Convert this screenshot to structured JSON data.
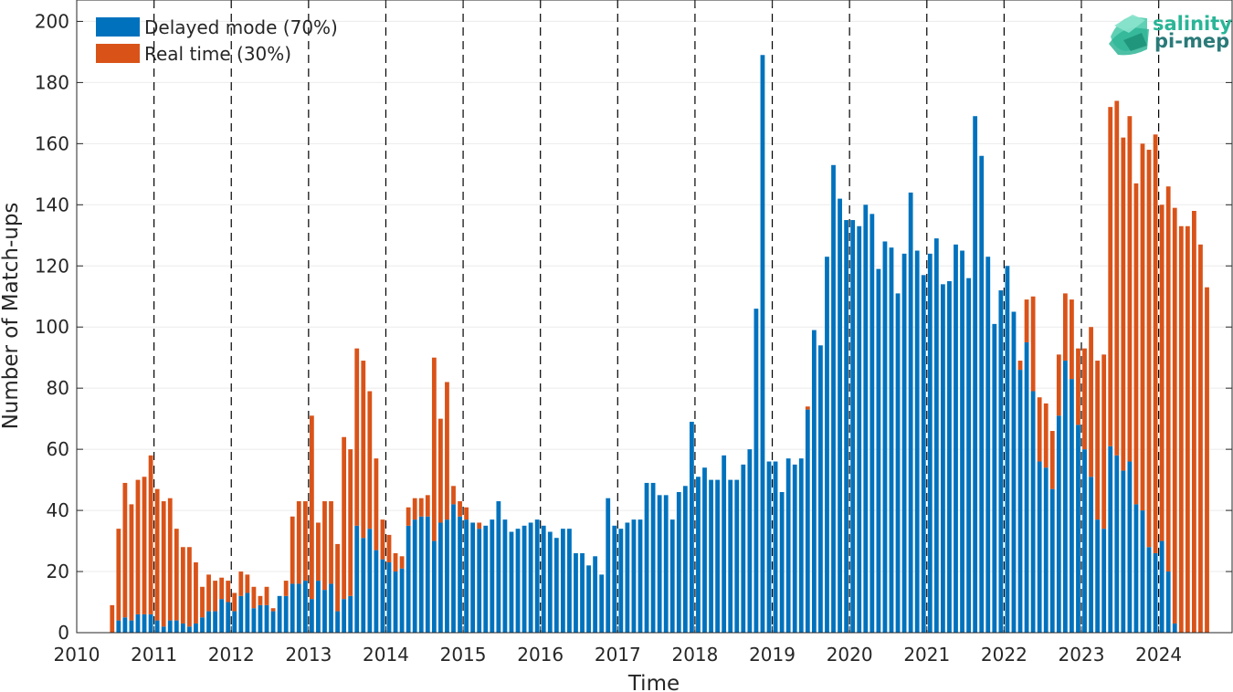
{
  "chart_data": {
    "type": "bar",
    "stacked": true,
    "xlabel": "Time",
    "ylabel": "Number of Match-ups",
    "ylim": [
      0,
      207
    ],
    "xlim": [
      2010.0,
      2024.95
    ],
    "yticks": [
      0,
      20,
      40,
      60,
      80,
      100,
      120,
      140,
      160,
      180,
      200
    ],
    "xticks": [
      "2010",
      "2011",
      "2012",
      "2013",
      "2014",
      "2015",
      "2016",
      "2017",
      "2018",
      "2019",
      "2020",
      "2021",
      "2022",
      "2023",
      "2024"
    ],
    "year_lines": [
      2011,
      2012,
      2013,
      2014,
      2015,
      2016,
      2017,
      2018,
      2019,
      2020,
      2021,
      2022,
      2023,
      2024
    ],
    "grid": true,
    "legend_position": "top-left",
    "x_start": "2010-06",
    "x_step": "1 month",
    "colors": {
      "delayed": "#0072BD",
      "realtime": "#D95319"
    },
    "series": [
      {
        "name": "Delayed mode (70%)",
        "color": "#0072BD",
        "values": [
          0,
          4,
          5,
          4,
          6,
          6,
          6,
          4,
          2,
          4,
          4,
          3,
          2,
          3,
          5,
          7,
          7,
          11,
          10,
          7,
          12,
          13,
          8,
          9,
          9,
          7,
          12,
          12,
          16,
          16,
          17,
          11,
          17,
          14,
          16,
          7,
          11,
          12,
          35,
          31,
          34,
          27,
          24,
          23,
          20,
          21,
          35,
          37,
          38,
          38,
          30,
          36,
          37,
          42,
          38,
          37,
          36,
          34,
          35,
          37,
          43,
          37,
          33,
          34,
          35,
          36,
          37,
          35,
          33,
          31,
          34,
          34,
          26,
          26,
          22,
          25,
          19,
          44,
          35,
          34,
          36,
          37,
          37,
          49,
          49,
          45,
          45,
          37,
          46,
          48,
          69,
          51,
          54,
          50,
          50,
          58,
          50,
          50,
          55,
          60,
          106,
          189,
          56,
          56,
          46,
          57,
          55,
          57,
          73,
          99,
          94,
          123,
          153,
          142,
          135,
          135,
          133,
          140,
          137,
          119,
          128,
          126,
          111,
          124,
          144,
          125,
          117,
          124,
          129,
          114,
          115,
          127,
          125,
          116,
          169,
          156,
          123,
          101,
          112,
          120,
          105,
          86,
          95,
          79,
          56,
          54,
          47,
          71,
          89,
          83,
          68,
          60,
          51,
          37,
          34,
          61,
          58,
          53,
          56,
          42,
          40,
          28,
          26,
          30,
          20,
          3,
          0,
          0,
          0,
          0,
          0,
          0
        ]
      },
      {
        "name": "Real time (30%)",
        "color": "#D95319",
        "values": [
          9,
          30,
          44,
          38,
          44,
          45,
          52,
          43,
          41,
          40,
          30,
          25,
          26,
          20,
          10,
          12,
          10,
          7,
          7,
          6,
          8,
          6,
          7,
          3,
          6,
          1,
          0,
          5,
          22,
          27,
          26,
          60,
          19,
          29,
          27,
          22,
          53,
          48,
          58,
          58,
          45,
          30,
          13,
          9,
          6,
          4,
          6,
          7,
          6,
          7,
          60,
          34,
          45,
          6,
          5,
          4,
          0,
          2,
          0,
          0,
          0,
          0,
          0,
          0,
          0,
          0,
          0,
          0,
          0,
          0,
          0,
          0,
          0,
          0,
          0,
          0,
          0,
          0,
          0,
          0,
          0,
          0,
          0,
          0,
          0,
          0,
          0,
          0,
          0,
          0,
          0,
          0,
          0,
          0,
          0,
          0,
          0,
          0,
          0,
          0,
          0,
          0,
          0,
          0,
          0,
          0,
          0,
          0,
          1,
          0,
          0,
          0,
          0,
          0,
          0,
          0,
          0,
          0,
          0,
          0,
          0,
          0,
          0,
          0,
          0,
          0,
          0,
          0,
          0,
          0,
          0,
          0,
          0,
          0,
          0,
          0,
          0,
          0,
          0,
          0,
          0,
          3,
          14,
          31,
          21,
          21,
          19,
          20,
          22,
          26,
          25,
          33,
          49,
          52,
          57,
          111,
          116,
          109,
          113,
          105,
          120,
          130,
          137,
          110,
          126,
          136,
          133,
          133,
          138,
          127,
          113
        ]
      }
    ]
  },
  "logo": {
    "line1": "salinity",
    "line2": "pi-mep"
  }
}
